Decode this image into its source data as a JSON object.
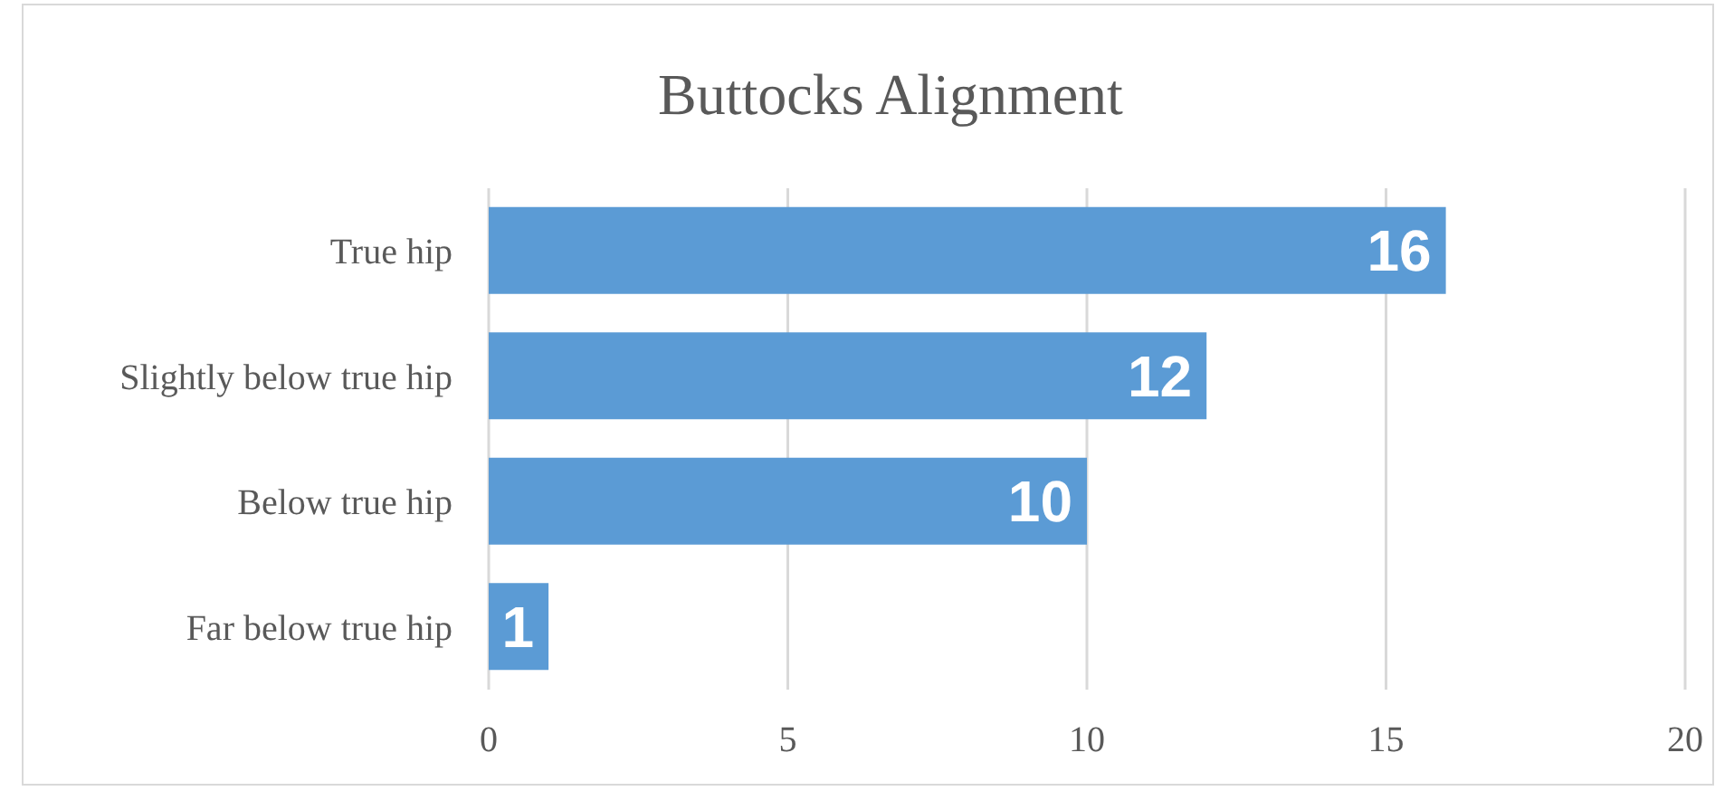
{
  "chart_data": {
    "type": "bar",
    "orientation": "horizontal",
    "title": "Buttocks Alignment",
    "categories": [
      "True hip",
      "Slightly below true hip",
      "Below true hip",
      "Far below true hip"
    ],
    "values": [
      16,
      12,
      10,
      1
    ],
    "color": "#5b9bd5",
    "xlim": [
      0,
      20
    ],
    "xticks": [
      0,
      5,
      10,
      15,
      20
    ],
    "grid": "x",
    "data_labels": true
  }
}
